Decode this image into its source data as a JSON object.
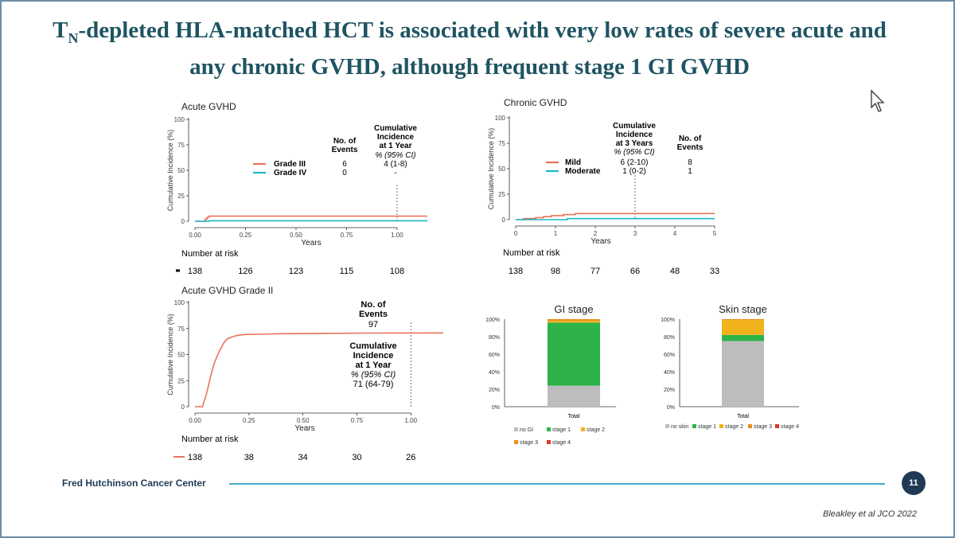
{
  "slide": {
    "title_main": "T",
    "title_sub": "N",
    "title_rest": "-depleted HLA-matched HCT is associated with very low rates of severe acute and any chronic GVHD, although frequent stage 1 GI GVHD",
    "footer_org": "Fred Hutchinson Cancer Center",
    "page_number": "11",
    "citation": "Bleakley et al JCO 2022"
  },
  "colors": {
    "red": "#e8735a",
    "teal": "#1ab8c4",
    "green": "#2db34a",
    "gray": "#bdbdbd",
    "orange": "#f2b21c",
    "dark_orange": "#e8901c",
    "dark_red": "#d23c2c"
  },
  "chart_data": [
    {
      "id": "acute",
      "type": "line",
      "title": "Acute GVHD",
      "ylabel": "Cumulative Incidence (%)",
      "xlabel": "Years",
      "ylim": [
        0,
        100
      ],
      "xlim": [
        0,
        1.15
      ],
      "yticks": [
        "0",
        "25",
        "50",
        "75",
        "100"
      ],
      "xticks": [
        "0.00",
        "0.25",
        "0.50",
        "0.75",
        "1.00"
      ],
      "xtick_values": [
        0,
        0.25,
        0.5,
        0.75,
        1.0
      ],
      "series": [
        {
          "name": "Grade III",
          "color": "#e8735a",
          "points": [
            [
              0,
              0
            ],
            [
              0.05,
              0
            ],
            [
              0.05,
              2
            ],
            [
              0.06,
              2
            ],
            [
              0.06,
              4
            ],
            [
              0.07,
              4
            ],
            [
              0.07,
              5
            ],
            [
              1.15,
              5
            ]
          ]
        },
        {
          "name": "Grade IV",
          "color": "#1ab8c4",
          "points": [
            [
              0,
              0
            ],
            [
              0.07,
              0
            ],
            [
              0.07,
              0.5
            ],
            [
              1.15,
              0.5
            ]
          ]
        }
      ],
      "marker_x": 1.0,
      "table_headers": [
        "No. of",
        "Events",
        "Cumulative",
        "Incidence",
        "at 1 Year",
        "% (95% CI)"
      ],
      "table_rows": [
        {
          "label": "Grade III",
          "events": "6",
          "ci": "4 (1-8)"
        },
        {
          "label": "Grade IV",
          "events": "0",
          "ci": "-"
        }
      ],
      "risk_title": "Number at risk",
      "risk_values": [
        "138",
        "126",
        "123",
        "115",
        "108"
      ]
    },
    {
      "id": "chronic",
      "type": "line",
      "title": "Chronic GVHD",
      "ylabel": "Cumulative Incidence (%)",
      "xlabel": "Years",
      "ylim": [
        0,
        100
      ],
      "xlim": [
        0,
        5
      ],
      "yticks": [
        "0",
        "25",
        "50",
        "75",
        "100"
      ],
      "xticks": [
        "0",
        "1",
        "2",
        "3",
        "4",
        "5"
      ],
      "xtick_values": [
        0,
        1,
        2,
        3,
        4,
        5
      ],
      "series": [
        {
          "name": "Mild",
          "color": "#e8735a",
          "points": [
            [
              0,
              0
            ],
            [
              0.2,
              0
            ],
            [
              0.2,
              1
            ],
            [
              0.5,
              1
            ],
            [
              0.5,
              2
            ],
            [
              0.7,
              2
            ],
            [
              0.7,
              3
            ],
            [
              0.9,
              3
            ],
            [
              0.9,
              4
            ],
            [
              1.2,
              4
            ],
            [
              1.2,
              5
            ],
            [
              1.5,
              5
            ],
            [
              1.5,
              6
            ],
            [
              5,
              6
            ]
          ]
        },
        {
          "name": "Moderate",
          "color": "#1ab8c4",
          "points": [
            [
              0,
              0
            ],
            [
              1.3,
              0
            ],
            [
              1.3,
              1
            ],
            [
              5,
              1
            ]
          ]
        }
      ],
      "marker_x": 3,
      "table_headers": [
        "Cumulative",
        "Incidence",
        "at 3 Years",
        "% (95% CI)",
        "No. of",
        "Events"
      ],
      "table_rows": [
        {
          "label": "Mild",
          "ci": "6 (2-10)",
          "events": "8"
        },
        {
          "label": "Moderate",
          "ci": "1 (0-2)",
          "events": "1"
        }
      ],
      "risk_title": "Number at risk",
      "risk_values": [
        "138",
        "98",
        "77",
        "66",
        "48",
        "33"
      ]
    },
    {
      "id": "grade2",
      "type": "line",
      "title": "Acute GVHD Grade II",
      "ylabel": "Cumulative Incidence (%)",
      "xlabel": "Years",
      "ylim": [
        0,
        100
      ],
      "xlim": [
        0,
        1.15
      ],
      "yticks": [
        "0",
        "25",
        "50",
        "75",
        "100"
      ],
      "xticks": [
        "0.00",
        "0.25",
        "0.50",
        "0.75",
        "1.00"
      ],
      "xtick_values": [
        0,
        0.25,
        0.5,
        0.75,
        1.0
      ],
      "series": [
        {
          "name": "Grade II",
          "color": "#e8735a",
          "points": [
            [
              0,
              0
            ],
            [
              0.035,
              0
            ],
            [
              0.04,
              4
            ],
            [
              0.05,
              10
            ],
            [
              0.06,
              18
            ],
            [
              0.07,
              27
            ],
            [
              0.08,
              35
            ],
            [
              0.09,
              42
            ],
            [
              0.1,
              47
            ],
            [
              0.11,
              52
            ],
            [
              0.12,
              56
            ],
            [
              0.13,
              60
            ],
            [
              0.14,
              63
            ],
            [
              0.15,
              65
            ],
            [
              0.16,
              66
            ],
            [
              0.18,
              67.5
            ],
            [
              0.2,
              68.5
            ],
            [
              0.23,
              69.2
            ],
            [
              0.3,
              69.5
            ],
            [
              0.4,
              70
            ],
            [
              0.6,
              70.3
            ],
            [
              0.8,
              70.6
            ],
            [
              1.15,
              70.8
            ]
          ]
        }
      ],
      "marker_x": 1.0,
      "events_header": [
        "No. of",
        "Events"
      ],
      "events_value": "97",
      "ci_header": [
        "Cumulative",
        "Incidence",
        "at 1 Year",
        "% (95% CI)"
      ],
      "ci_value": "71 (64-79)",
      "risk_title": "Number at risk",
      "risk_values": [
        "138",
        "38",
        "34",
        "30",
        "26"
      ]
    },
    {
      "id": "gi",
      "type": "bar",
      "title": "GI stage",
      "categories": [
        "Total"
      ],
      "ylim": [
        0,
        100
      ],
      "yticks": [
        "0%",
        "20%",
        "40%",
        "60%",
        "80%",
        "100%"
      ],
      "series": [
        {
          "name": "no GI",
          "color": "#bdbdbd",
          "values": [
            24
          ]
        },
        {
          "name": "stage 1",
          "color": "#2db34a",
          "values": [
            72
          ]
        },
        {
          "name": "stage 2",
          "color": "#f2b21c",
          "values": [
            2
          ]
        },
        {
          "name": "stage 3",
          "color": "#e8901c",
          "values": [
            2
          ]
        },
        {
          "name": "stage 4",
          "color": "#d23c2c",
          "values": [
            0
          ]
        }
      ]
    },
    {
      "id": "skin",
      "type": "bar",
      "title": "Skin stage",
      "categories": [
        "Total"
      ],
      "ylim": [
        0,
        100
      ],
      "yticks": [
        "0%",
        "20%",
        "40%",
        "60%",
        "80%",
        "100%"
      ],
      "series": [
        {
          "name": "no skin",
          "color": "#bdbdbd",
          "values": [
            75
          ]
        },
        {
          "name": "stage 1",
          "color": "#2db34a",
          "values": [
            7
          ]
        },
        {
          "name": "stage 2",
          "color": "#f2b21c",
          "values": [
            17
          ]
        },
        {
          "name": "stage 3",
          "color": "#e8901c",
          "values": [
            1
          ]
        },
        {
          "name": "stage 4",
          "color": "#d23c2c",
          "values": [
            0
          ]
        }
      ]
    }
  ]
}
